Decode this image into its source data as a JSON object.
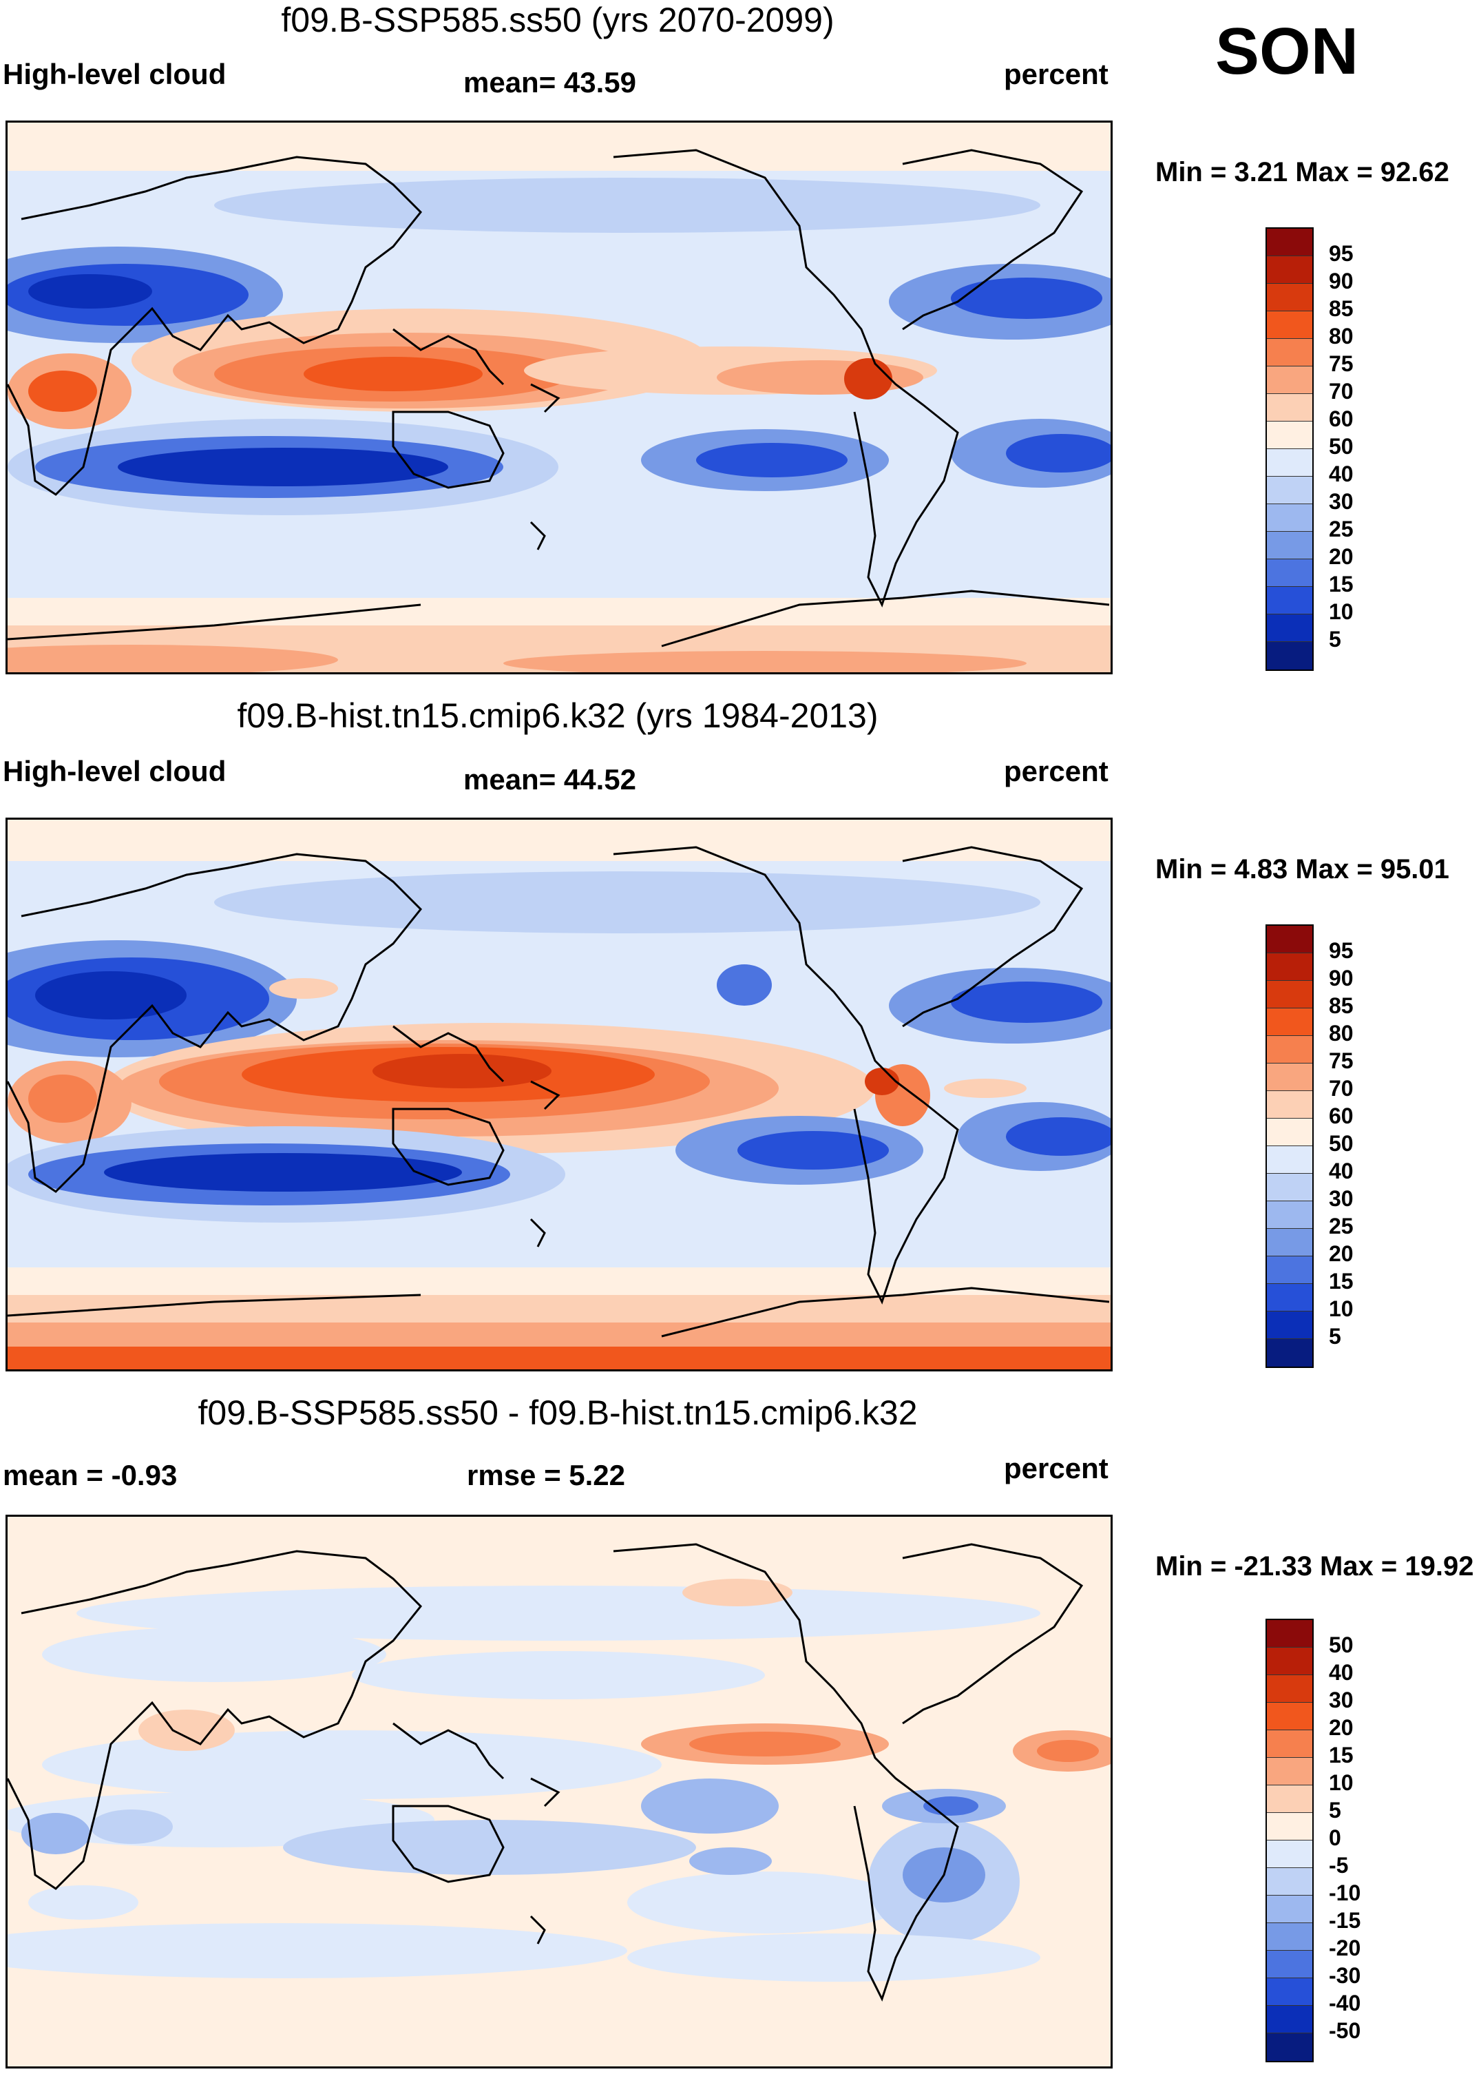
{
  "season": "SON",
  "panels": [
    {
      "title": "f09.B-SSP585.ss50 (yrs 2070-2099)",
      "left_label": "High-level cloud",
      "center_label": "mean=  43.59",
      "right_label": "percent",
      "minmax": "Min =   3.21 Max =  92.62",
      "colorbar": {
        "ticks": [
          "95",
          "90",
          "85",
          "80",
          "75",
          "70",
          "60",
          "50",
          "40",
          "30",
          "25",
          "20",
          "15",
          "10",
          "5"
        ],
        "colors": [
          "#8b0a0a",
          "#b81f08",
          "#d83a0e",
          "#f1571d",
          "#f6804e",
          "#f9a67f",
          "#fcd0b5",
          "#fff0e2",
          "#dfeafb",
          "#bfd2f5",
          "#9db8ef",
          "#779ae6",
          "#4c74e0",
          "#2650d8",
          "#0b2fb8",
          "#071c80"
        ]
      }
    },
    {
      "title": "f09.B-hist.tn15.cmip6.k32 (yrs 1984-2013)",
      "left_label": "High-level cloud",
      "center_label": "mean=  44.52",
      "right_label": "percent",
      "minmax": "Min =   4.83 Max =  95.01",
      "colorbar": {
        "ticks": [
          "95",
          "90",
          "85",
          "80",
          "75",
          "70",
          "60",
          "50",
          "40",
          "30",
          "25",
          "20",
          "15",
          "10",
          "5"
        ],
        "colors": [
          "#8b0a0a",
          "#b81f08",
          "#d83a0e",
          "#f1571d",
          "#f6804e",
          "#f9a67f",
          "#fcd0b5",
          "#fff0e2",
          "#dfeafb",
          "#bfd2f5",
          "#9db8ef",
          "#779ae6",
          "#4c74e0",
          "#2650d8",
          "#0b2fb8",
          "#071c80"
        ]
      }
    },
    {
      "title": "f09.B-SSP585.ss50 - f09.B-hist.tn15.cmip6.k32",
      "left_label": "mean =  -0.93",
      "center_label": "rmse =    5.22",
      "right_label": "percent",
      "minmax": "Min = -21.33 Max =  19.92",
      "colorbar": {
        "ticks": [
          "50",
          "40",
          "30",
          "20",
          "15",
          "10",
          "5",
          "0",
          "-5",
          "-10",
          "-15",
          "-20",
          "-30",
          "-40",
          "-50"
        ],
        "colors": [
          "#8b0a0a",
          "#b81f08",
          "#d83a0e",
          "#f1571d",
          "#f6804e",
          "#f9a67f",
          "#fcd0b5",
          "#fff0e2",
          "#dfeafb",
          "#bfd2f5",
          "#9db8ef",
          "#779ae6",
          "#4c74e0",
          "#2650d8",
          "#0b2fb8",
          "#071c80"
        ]
      }
    }
  ]
}
